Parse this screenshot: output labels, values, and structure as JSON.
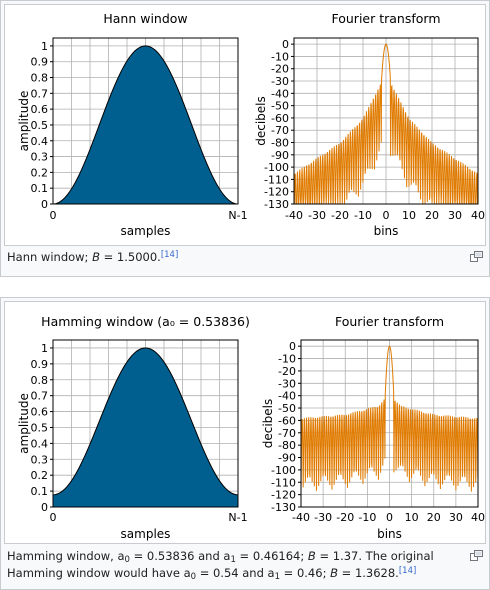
{
  "figures": [
    {
      "caption": {
        "lead": "Hann window; ",
        "b_label": "B",
        "b_value": " = 1.5000.",
        "ref": "[14]"
      }
    },
    {
      "caption": {
        "lead": "Hamming window, a",
        "a0_sub": "0",
        "a0_value": " = 0.53836 and a",
        "a1_sub": "1",
        "a1_value": " = 0.46164; ",
        "b_label": "B",
        "b_value": " = 1.37. The original Hamming window would have a",
        "orig_a0_sub": "0",
        "orig_a0_value": " = 0.54 and a",
        "orig_a1_sub": "1",
        "orig_a1_value": " = 0.46; ",
        "orig_b_label": "B",
        "orig_b_value": " = 1.3628.",
        "ref": "[14]"
      }
    }
  ],
  "colors": {
    "window_fill": "#005f8f",
    "spectrum": "#e07b00",
    "magnify_icon": "#72777d"
  },
  "icons": {
    "enlarge": "magnify-clip-icon"
  },
  "chart_data": [
    {
      "type": "area",
      "title": "Hann window",
      "xlabel": "samples",
      "ylabel": "amplitude",
      "xticks": [
        "0",
        "N-1"
      ],
      "yticks": [
        "0",
        "0.1",
        "0.2",
        "0.3",
        "0.4",
        "0.5",
        "0.6",
        "0.7",
        "0.8",
        "0.9",
        "1"
      ],
      "ylim": [
        0,
        1.05
      ],
      "grid": true,
      "series": [
        {
          "function": "hann",
          "a0": 0.5,
          "x": [
            0,
            1
          ],
          "y_min": 0,
          "y_max": 1
        }
      ]
    },
    {
      "type": "line",
      "title": "Fourier transform",
      "xlabel": "bins",
      "ylabel": "decibels",
      "xticks": [
        "-40",
        "-30",
        "-20",
        "-10",
        "0",
        "10",
        "20",
        "30",
        "40"
      ],
      "yticks": [
        "0",
        "-10",
        "-20",
        "-30",
        "-40",
        "-50",
        "-60",
        "-70",
        "-80",
        "-90",
        "-100",
        "-110",
        "-120",
        "-130"
      ],
      "xlim": [
        -40,
        40
      ],
      "ylim": [
        -130,
        5
      ],
      "grid": true,
      "series": [
        {
          "spectrum_of": "hann",
          "mainlobe_half_width_bins": 2,
          "peak_db": 0,
          "sidelobe_envelope_db": {
            "2": -31,
            "10": -60,
            "20": -80,
            "40": -105
          }
        }
      ]
    },
    {
      "type": "area",
      "title": "Hamming window (a₀ = 0.53836)",
      "xlabel": "samples",
      "ylabel": "amplitude",
      "xticks": [
        "0",
        "N-1"
      ],
      "yticks": [
        "0",
        "0.1",
        "0.2",
        "0.3",
        "0.4",
        "0.5",
        "0.6",
        "0.7",
        "0.8",
        "0.9",
        "1"
      ],
      "ylim": [
        0,
        1.05
      ],
      "grid": true,
      "series": [
        {
          "function": "hamming",
          "a0": 0.53836,
          "a1": 0.46164,
          "x": [
            0,
            1
          ],
          "y_min": 0.0767,
          "y_max": 1
        }
      ]
    },
    {
      "type": "line",
      "title": "Fourier transform",
      "xlabel": "bins",
      "ylabel": "decibels",
      "xticks": [
        "-40",
        "-30",
        "-20",
        "-10",
        "0",
        "10",
        "20",
        "30",
        "40"
      ],
      "yticks": [
        "0",
        "-10",
        "-20",
        "-30",
        "-40",
        "-50",
        "-60",
        "-70",
        "-80",
        "-90",
        "-100",
        "-110",
        "-120",
        "-130"
      ],
      "xlim": [
        -40,
        40
      ],
      "ylim": [
        -130,
        5
      ],
      "grid": true,
      "series": [
        {
          "spectrum_of": "hamming",
          "mainlobe_half_width_bins": 2,
          "peak_db": 0,
          "sidelobe_envelope_db": {
            "2": -42,
            "5": -48,
            "20": -55,
            "40": -58
          }
        }
      ]
    }
  ]
}
